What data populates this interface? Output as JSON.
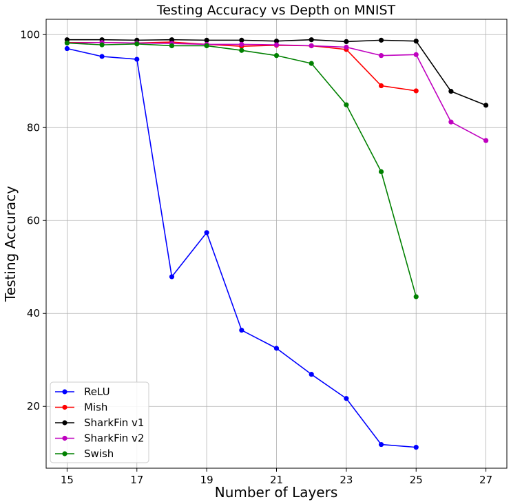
{
  "chart_data": {
    "type": "line",
    "title": "Testing Accuracy vs Depth on MNIST",
    "xlabel": "Number of Layers",
    "ylabel": "Testing Accuracy",
    "xlim": [
      14.4,
      27.6
    ],
    "ylim": [
      6.7,
      103.3
    ],
    "xticks": [
      "15",
      "17",
      "19",
      "21",
      "23",
      "25",
      "27"
    ],
    "yticks": [
      "20",
      "40",
      "60",
      "80",
      "100"
    ],
    "grid": true,
    "legend_position": "lower-left",
    "series": [
      {
        "name": "ReLU",
        "color": "#0000ff",
        "x": [
          15,
          16,
          17,
          18,
          19,
          20,
          21,
          22,
          23,
          24,
          25
        ],
        "values": [
          97.0,
          95.3,
          94.7,
          47.9,
          57.4,
          36.4,
          32.5,
          26.9,
          21.7,
          11.8,
          11.2
        ]
      },
      {
        "name": "Mish",
        "color": "#ff0000",
        "x": [
          15,
          16,
          17,
          18,
          19,
          20,
          21,
          22,
          23,
          24,
          25
        ],
        "values": [
          98.3,
          98.3,
          98.2,
          98.4,
          97.9,
          97.5,
          97.7,
          97.6,
          96.8,
          89.0,
          87.9
        ]
      },
      {
        "name": "SharkFin v1",
        "color": "#000000",
        "x": [
          15,
          16,
          17,
          18,
          19,
          20,
          21,
          22,
          23,
          24,
          25,
          26,
          27
        ],
        "values": [
          98.9,
          98.9,
          98.8,
          98.9,
          98.8,
          98.8,
          98.6,
          98.9,
          98.5,
          98.8,
          98.6,
          87.8,
          84.8
        ]
      },
      {
        "name": "SharkFin v2",
        "color": "#bf00bf",
        "x": [
          15,
          16,
          17,
          18,
          19,
          20,
          21,
          22,
          23,
          24,
          25,
          26,
          27
        ],
        "values": [
          98.2,
          98.3,
          98.2,
          98.1,
          97.9,
          97.9,
          97.8,
          97.6,
          97.3,
          95.5,
          95.7,
          81.2,
          77.2
        ]
      },
      {
        "name": "Swish",
        "color": "#008000",
        "x": [
          15,
          16,
          17,
          18,
          19,
          20,
          21,
          22,
          23,
          24,
          25
        ],
        "values": [
          98.2,
          97.8,
          98.0,
          97.6,
          97.6,
          96.6,
          95.5,
          93.8,
          84.9,
          70.5,
          43.6
        ]
      }
    ]
  }
}
